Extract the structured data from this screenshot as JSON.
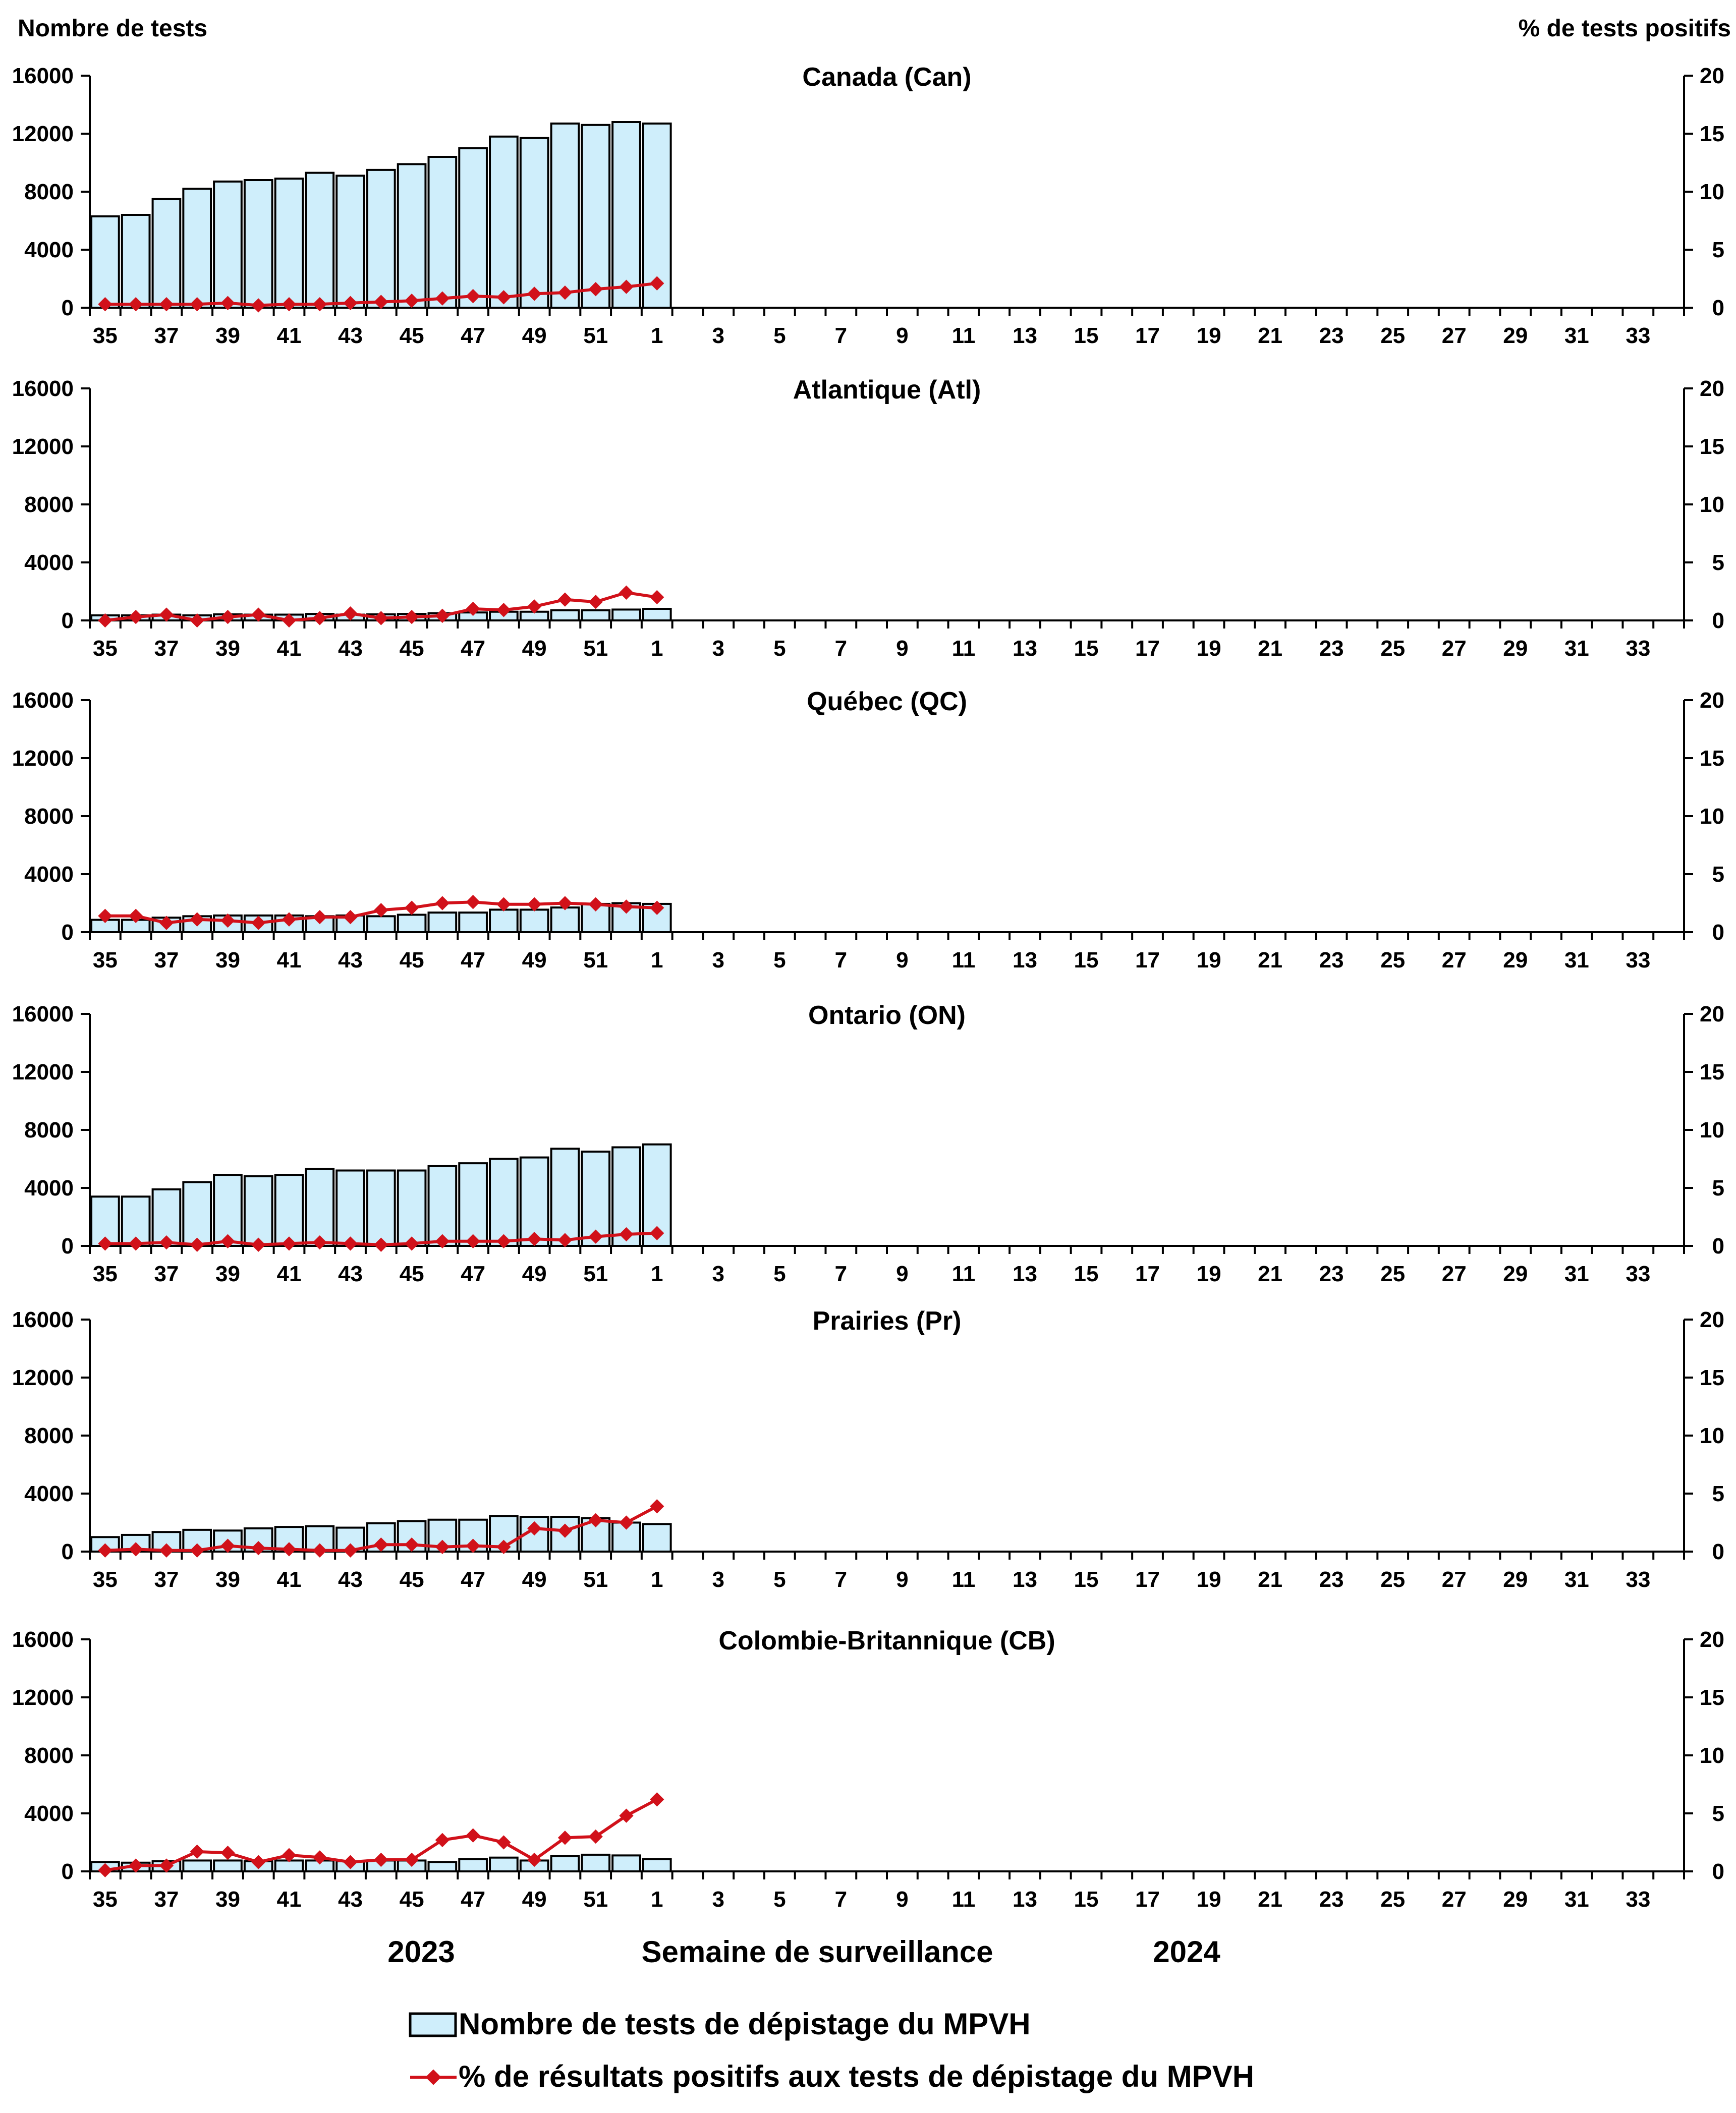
{
  "axes": {
    "left_title": "Nombre de tests",
    "right_title": "% de tests positifs",
    "left_ticks": [
      "0",
      "4000",
      "8000",
      "12000",
      "16000"
    ],
    "right_ticks": [
      "0",
      "5",
      "10",
      "15",
      "20"
    ],
    "x_ticks": [
      "35",
      "37",
      "39",
      "41",
      "43",
      "45",
      "47",
      "49",
      "51",
      "1",
      "3",
      "5",
      "7",
      "9",
      "11",
      "13",
      "15",
      "17",
      "19",
      "21",
      "23",
      "25",
      "27",
      "29",
      "31",
      "33"
    ],
    "xlabel": "Semaine de surveillance",
    "year_2023": "2023",
    "year_2024": "2024"
  },
  "legend": {
    "bars": "Nombre de tests de dépistage du MPVH",
    "line": "% de résultats positifs aux tests de dépistage du MPVH"
  },
  "colors": {
    "bar_fill": "#cfeefb",
    "bar_stroke": "#000000",
    "line": "#d1111a",
    "axis": "#000000"
  },
  "chart_data": {
    "type": "bar+line",
    "weeks": [
      "35",
      "36",
      "37",
      "38",
      "39",
      "40",
      "41",
      "42",
      "43",
      "44",
      "45",
      "46",
      "47",
      "48",
      "49",
      "50",
      "51",
      "52",
      "1",
      "2",
      "3",
      "4",
      "5",
      "6",
      "7",
      "8",
      "9",
      "10",
      "11",
      "12",
      "13",
      "14",
      "15",
      "16",
      "17",
      "18",
      "19",
      "20",
      "21",
      "22",
      "23",
      "24",
      "25",
      "26",
      "27",
      "28",
      "29",
      "30",
      "31",
      "32",
      "33",
      "34"
    ],
    "ylim_left": [
      0,
      16000
    ],
    "ylim_right": [
      0,
      20
    ],
    "panels": [
      {
        "title": "Canada (Can)",
        "tests": [
          6300,
          6400,
          7500,
          8200,
          8700,
          8800,
          8900,
          9300,
          9100,
          9500,
          9900,
          10400,
          11000,
          11800,
          11700,
          12700,
          12600,
          12800,
          12700
        ],
        "pct_positive": [
          0.3,
          0.3,
          0.3,
          0.3,
          0.4,
          0.2,
          0.3,
          0.3,
          0.4,
          0.5,
          0.6,
          0.8,
          1.0,
          0.9,
          1.2,
          1.3,
          1.6,
          1.8,
          2.1
        ]
      },
      {
        "title": "Atlantique (Atl)",
        "tests": [
          350,
          350,
          400,
          350,
          420,
          400,
          400,
          450,
          400,
          420,
          450,
          500,
          550,
          600,
          600,
          700,
          700,
          750,
          800
        ],
        "pct_positive": [
          0.0,
          0.3,
          0.5,
          0.0,
          0.3,
          0.5,
          0.0,
          0.2,
          0.6,
          0.2,
          0.3,
          0.4,
          1.0,
          0.9,
          1.2,
          1.8,
          1.6,
          2.4,
          2.0
        ]
      },
      {
        "title": "Québec (QC)",
        "tests": [
          850,
          850,
          1000,
          1100,
          1150,
          1150,
          1150,
          1100,
          1150,
          1100,
          1200,
          1350,
          1350,
          1550,
          1550,
          1700,
          1950,
          2000,
          1950
        ],
        "pct_positive": [
          1.4,
          1.4,
          0.8,
          1.1,
          1.0,
          0.8,
          1.1,
          1.3,
          1.3,
          1.9,
          2.1,
          2.5,
          2.6,
          2.4,
          2.4,
          2.5,
          2.4,
          2.2,
          2.1
        ]
      },
      {
        "title": "Ontario (ON)",
        "tests": [
          3400,
          3400,
          3900,
          4400,
          4900,
          4800,
          4900,
          5300,
          5200,
          5200,
          5200,
          5500,
          5700,
          6000,
          6100,
          6700,
          6500,
          6800,
          7000
        ],
        "pct_positive": [
          0.2,
          0.2,
          0.3,
          0.1,
          0.4,
          0.1,
          0.2,
          0.3,
          0.2,
          0.1,
          0.2,
          0.4,
          0.4,
          0.4,
          0.6,
          0.5,
          0.8,
          1.0,
          1.1
        ]
      },
      {
        "title": "Prairies (Pr)",
        "tests": [
          1000,
          1150,
          1350,
          1500,
          1450,
          1600,
          1700,
          1750,
          1650,
          1950,
          2100,
          2200,
          2200,
          2450,
          2400,
          2400,
          2300,
          2000,
          1900
        ],
        "pct_positive": [
          0.1,
          0.2,
          0.1,
          0.1,
          0.5,
          0.3,
          0.2,
          0.1,
          0.1,
          0.6,
          0.6,
          0.4,
          0.5,
          0.4,
          2.0,
          1.8,
          2.7,
          2.5,
          3.9
        ]
      },
      {
        "title": "Colombie-Britannique (CB)",
        "tests": [
          650,
          600,
          700,
          750,
          750,
          700,
          750,
          750,
          700,
          750,
          750,
          650,
          850,
          950,
          750,
          1050,
          1150,
          1100,
          850
        ],
        "pct_positive": [
          0.1,
          0.5,
          0.5,
          1.7,
          1.6,
          0.8,
          1.4,
          1.2,
          0.8,
          1.0,
          1.0,
          2.7,
          3.1,
          2.5,
          1.0,
          2.9,
          3.0,
          4.8,
          6.2
        ]
      }
    ]
  }
}
